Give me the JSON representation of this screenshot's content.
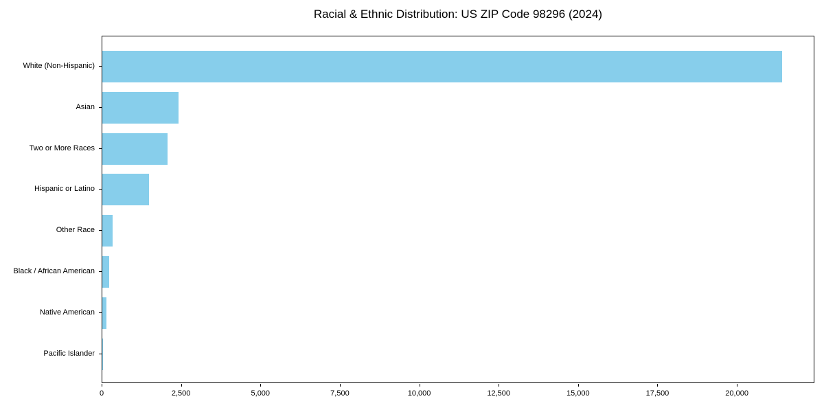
{
  "chart_data": {
    "type": "bar",
    "orientation": "horizontal",
    "title": "Racial & Ethnic Distribution: US ZIP Code 98296 (2024)",
    "xlabel": "",
    "ylabel": "",
    "categories": [
      "White (Non-Hispanic)",
      "Asian",
      "Two or More Races",
      "Hispanic or Latino",
      "Other Race",
      "Black / African American",
      "Native American",
      "Pacific Islander"
    ],
    "values": [
      21400,
      2400,
      2060,
      1480,
      330,
      210,
      140,
      20
    ],
    "xlim": [
      0,
      22440
    ],
    "x_ticks": [
      0,
      2500,
      5000,
      7500,
      10000,
      12500,
      15000,
      17500,
      20000
    ],
    "x_tick_labels": [
      "0",
      "2,500",
      "5,000",
      "7,500",
      "10,000",
      "12,500",
      "15,000",
      "17,500",
      "20,000"
    ],
    "bar_color": "#87CEEB",
    "spine_color": "#000000",
    "text_color": "#000000",
    "grid": false,
    "legend": null
  }
}
